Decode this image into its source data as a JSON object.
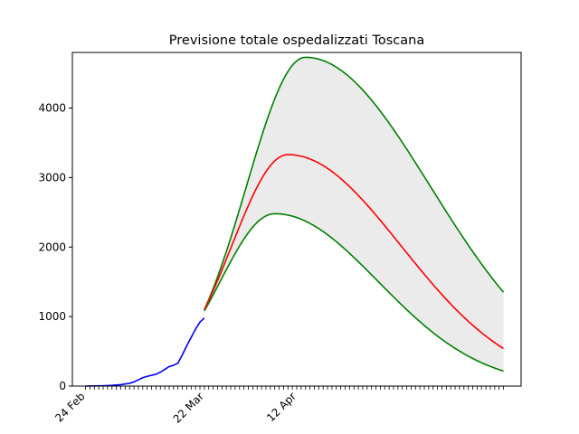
{
  "chart_data": {
    "type": "line",
    "title": "Previsione totale ospedalizzati Toscana",
    "xlabel": "",
    "ylabel": "",
    "x_start": "2020-02-24",
    "x_end": "2020-05-29",
    "xlim": [
      "2020-02-21",
      "2020-06-02"
    ],
    "ylim": [
      0,
      4800
    ],
    "yticks": [
      0,
      1000,
      2000,
      3000,
      4000
    ],
    "xtick_labels": [
      {
        "date": "2020-02-24",
        "label": "24 Feb"
      },
      {
        "date": "2020-03-22",
        "label": "22 Mar"
      },
      {
        "date": "2020-04-12",
        "label": "12 Apr"
      }
    ],
    "grid": false,
    "legend": "none",
    "observed": {
      "color": "#0000ff",
      "points": [
        [
          "2020-02-24",
          0
        ],
        [
          "2020-02-26",
          2
        ],
        [
          "2020-02-28",
          5
        ],
        [
          "2020-03-01",
          10
        ],
        [
          "2020-03-03",
          20
        ],
        [
          "2020-03-05",
          40
        ],
        [
          "2020-03-06",
          60
        ],
        [
          "2020-03-07",
          90
        ],
        [
          "2020-03-08",
          120
        ],
        [
          "2020-03-09",
          140
        ],
        [
          "2020-03-11",
          170
        ],
        [
          "2020-03-12",
          200
        ],
        [
          "2020-03-13",
          240
        ],
        [
          "2020-03-14",
          280
        ],
        [
          "2020-03-15",
          300
        ],
        [
          "2020-03-16",
          330
        ],
        [
          "2020-03-17",
          450
        ],
        [
          "2020-03-18",
          580
        ],
        [
          "2020-03-19",
          700
        ],
        [
          "2020-03-20",
          820
        ],
        [
          "2020-03-21",
          920
        ],
        [
          "2020-03-22",
          980
        ]
      ]
    },
    "forecast": {
      "start": "2020-03-22",
      "end": "2020-05-29",
      "central": {
        "color": "#ff0000",
        "start_value": 1100,
        "peak_date": "2020-04-10",
        "peak_value": 3330,
        "end_value": 540
      },
      "upper": {
        "color": "#008000",
        "start_value": 1100,
        "peak_date": "2020-04-14",
        "peak_value": 4730,
        "end_value": 1350
      },
      "lower": {
        "color": "#008000",
        "start_value": 1080,
        "peak_date": "2020-04-07",
        "peak_value": 2480,
        "end_value": 215
      },
      "band_color": "#ebebeb"
    },
    "colors": {
      "observed": "#0000ff",
      "central": "#ff0000",
      "bounds": "#008000",
      "band": "#ebebeb"
    }
  }
}
